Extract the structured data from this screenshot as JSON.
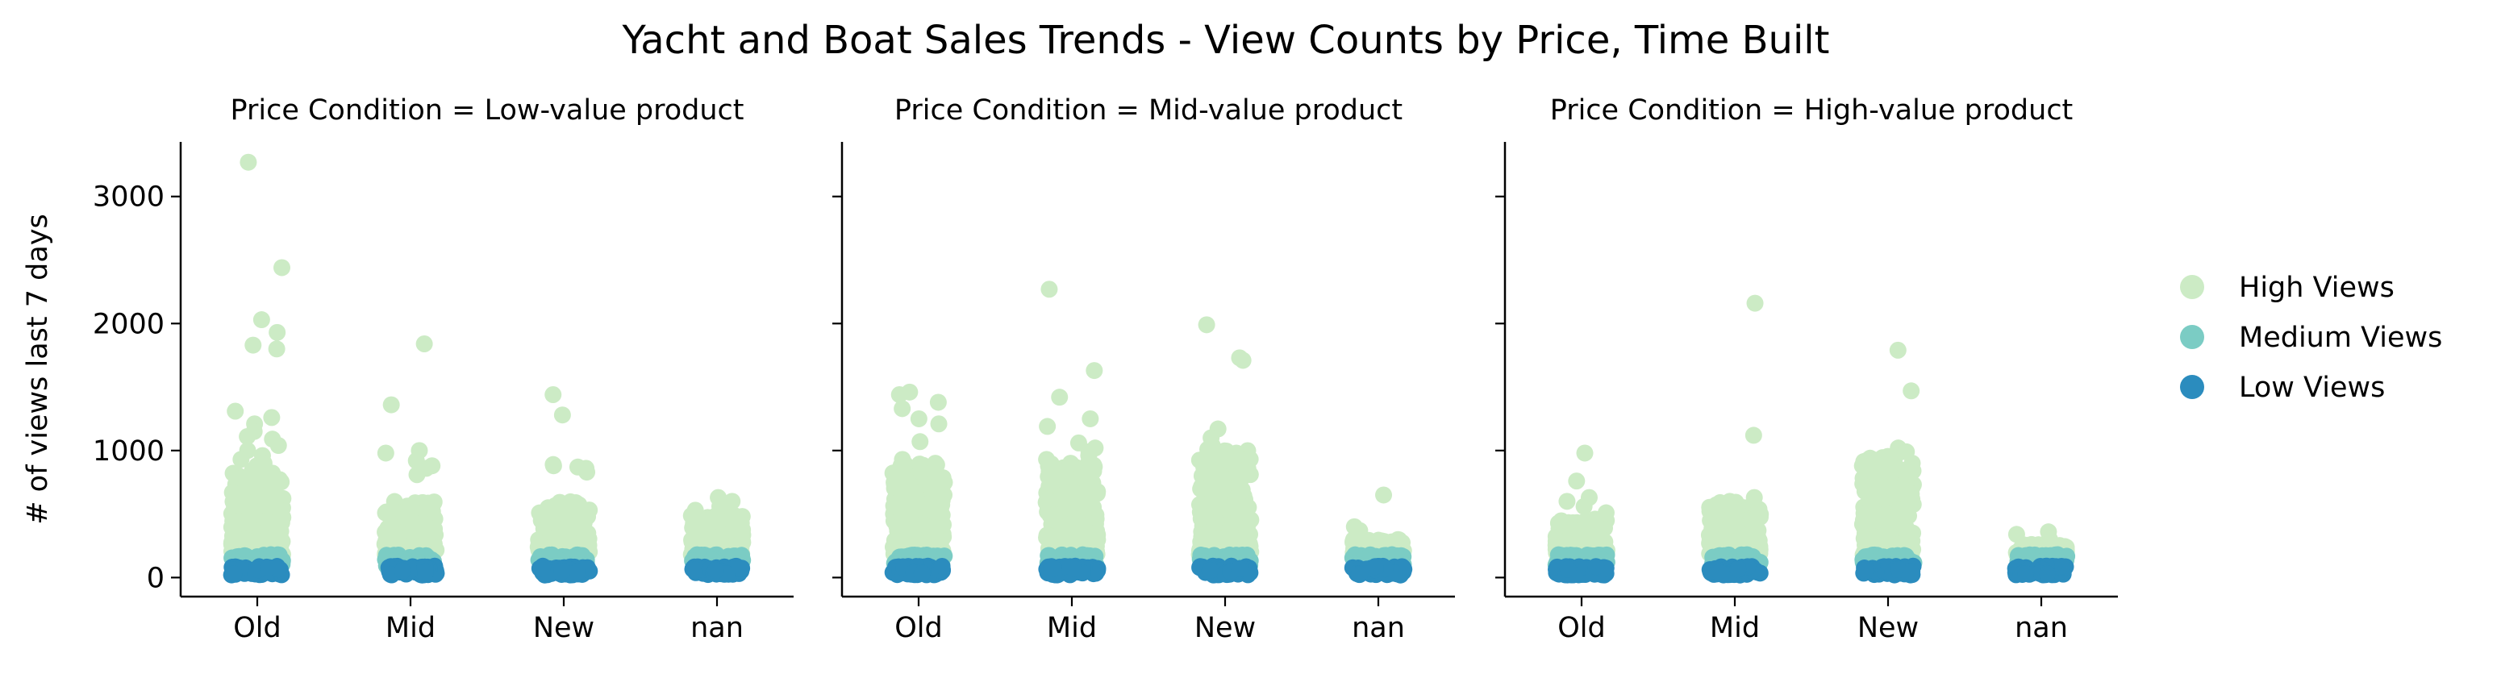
{
  "chart_data": {
    "type": "scatter",
    "title": "Yacht and Boat Sales Trends - View Counts by Price, Time Built",
    "ylabel": "# of views last 7 days",
    "ylim": [
      -150,
      3430
    ],
    "yticks": [
      0,
      1000,
      2000,
      3000
    ],
    "categories": [
      "Old",
      "Mid",
      "New",
      "nan"
    ],
    "panels": [
      {
        "title": "Price Condition = Low-value product"
      },
      {
        "title": "Price Condition = Mid-value product"
      },
      {
        "title": "Price Condition = High-value product"
      }
    ],
    "legend": {
      "placement": "right",
      "entries": [
        {
          "name": "High Views",
          "color": "#ccebc5"
        },
        {
          "name": "Medium Views",
          "color": "#7bccc4"
        },
        {
          "name": "Low Views",
          "color": "#2b8cbe"
        }
      ]
    },
    "groups": {
      "medium_band": [
        90,
        180
      ],
      "low_band": [
        20,
        90
      ]
    },
    "high_outliers": [
      [
        [
          3270,
          2440,
          2030,
          1930,
          1830,
          1800,
          1310,
          1260,
          1210,
          1150,
          1110,
          1090,
          1040,
          1000,
          960,
          930,
          900,
          880,
          860
        ],
        [
          1840,
          1360,
          1000,
          980,
          920,
          880,
          860,
          810
        ],
        [
          1440,
          1280,
          890,
          880,
          870,
          860,
          830
        ],
        [
          630,
          600,
          560,
          530,
          500
        ]
      ],
      [
        [
          1460,
          1440,
          1380,
          1330,
          1250,
          1210,
          1070,
          930,
          900,
          880
        ],
        [
          2270,
          1630,
          1420,
          1250,
          1190,
          1060,
          1020,
          990,
          960,
          930,
          900
        ],
        [
          1990,
          1730,
          1710,
          1170,
          1100,
          1040,
          1010,
          980,
          950,
          920,
          890
        ],
        [
          650,
          400,
          370,
          330
        ]
      ],
      [
        [
          980,
          760,
          630,
          600,
          560,
          510,
          460
        ],
        [
          2160,
          1120,
          630,
          600,
          560,
          530
        ],
        [
          1790,
          1470,
          1020,
          990,
          960,
          900,
          880,
          840
        ],
        [
          360,
          340,
          300,
          260
        ]
      ]
    ],
    "high_dense_top": [
      [
        850,
        620,
        600,
        500
      ],
      [
        900,
        900,
        1000,
        300
      ],
      [
        450,
        600,
        960,
        260
      ]
    ]
  }
}
